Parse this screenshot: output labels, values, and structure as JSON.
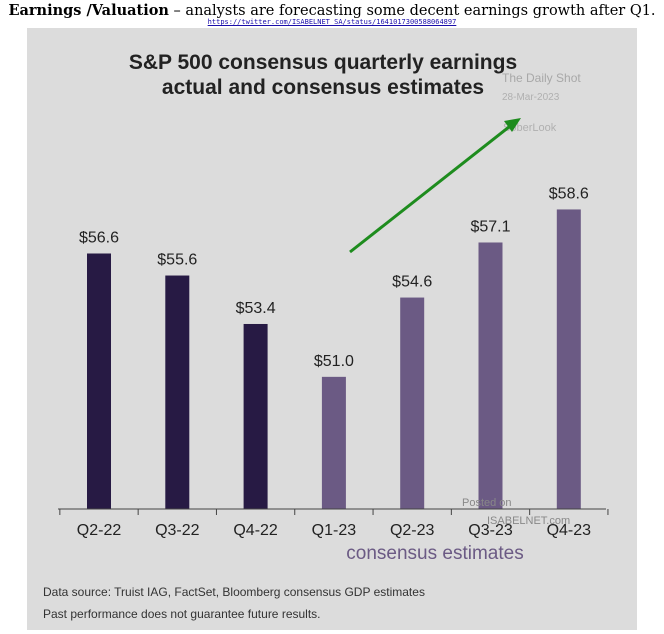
{
  "header": {
    "headline_bold": "Earnings /Valuation",
    "headline_rest": " – analysts are forecasting some decent earnings growth after Q1.",
    "source_url": "https://twitter.com/ISABELNET_SA/status/1641017300588064897"
  },
  "chart_data": {
    "type": "bar",
    "title_line1": "S&P 500 consensus quarterly earnings",
    "title_line2": "actual and consensus estimates",
    "categories": [
      "Q2-22",
      "Q3-22",
      "Q4-22",
      "Q1-23",
      "Q2-23",
      "Q3-23",
      "Q4-23"
    ],
    "values": [
      56.6,
      55.6,
      53.4,
      51.0,
      54.6,
      57.1,
      58.6
    ],
    "labels": [
      "$56.6",
      "$55.6",
      "$53.4",
      "$51.0",
      "$54.6",
      "$57.1",
      "$58.6"
    ],
    "kinds": [
      "actual",
      "actual",
      "actual",
      "estimate",
      "estimate",
      "estimate",
      "estimate"
    ],
    "ylim": [
      45.0,
      60.3
    ],
    "xlabel": "consensus estimates",
    "ylabel": "",
    "annotation": "green arrow indicating expected growth after Q1-23",
    "colors": {
      "actual": "#271a44",
      "estimate": "#6b5a84",
      "arrow": "#1e8c1e",
      "axis": "#444444"
    }
  },
  "watermarks": {
    "daily_shot": "The Daily Shot",
    "date": "28-Mar-2023",
    "soberlook": "SoberLook",
    "posted_on": "Posted on",
    "isabelnet": "ISABELNET.com"
  },
  "footer": {
    "source": "Data source: Truist IAG, FactSet, Bloomberg consensus GDP estimates",
    "disclaimer": "Past performance does not guarantee future results."
  }
}
